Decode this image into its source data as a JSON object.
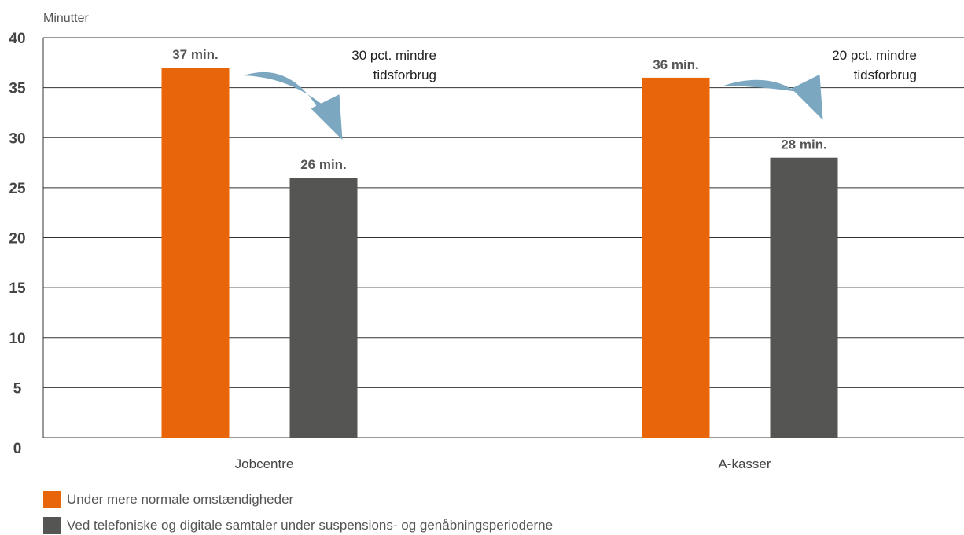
{
  "chart_data": {
    "type": "bar",
    "ylabel": "Minutter",
    "ylim": [
      0,
      40
    ],
    "yticks": [
      0,
      5,
      10,
      15,
      20,
      25,
      30,
      35,
      40
    ],
    "categories": [
      "Jobcentre",
      "A-kasser"
    ],
    "series": [
      {
        "name": "Under mere normale omstændigheder",
        "color": "#E8650A",
        "values": [
          37,
          36
        ],
        "labels": [
          "37 min.",
          "36 min."
        ]
      },
      {
        "name": "Ved telefoniske og digitale samtaler under suspensions- og genåbningsperioderne",
        "color": "#555553",
        "values": [
          26,
          28
        ],
        "labels": [
          "26 min.",
          "28 min."
        ]
      }
    ],
    "annotations": [
      {
        "category": "Jobcentre",
        "text": [
          "30 pct. mindre",
          "tidsforbrug"
        ],
        "arrow_color": "#7BA7C0"
      },
      {
        "category": "A-kasser",
        "text": [
          "20 pct. mindre",
          "tidsforbrug"
        ],
        "arrow_color": "#7BA7C0"
      }
    ],
    "grid": true,
    "legend_position": "bottom-left"
  }
}
